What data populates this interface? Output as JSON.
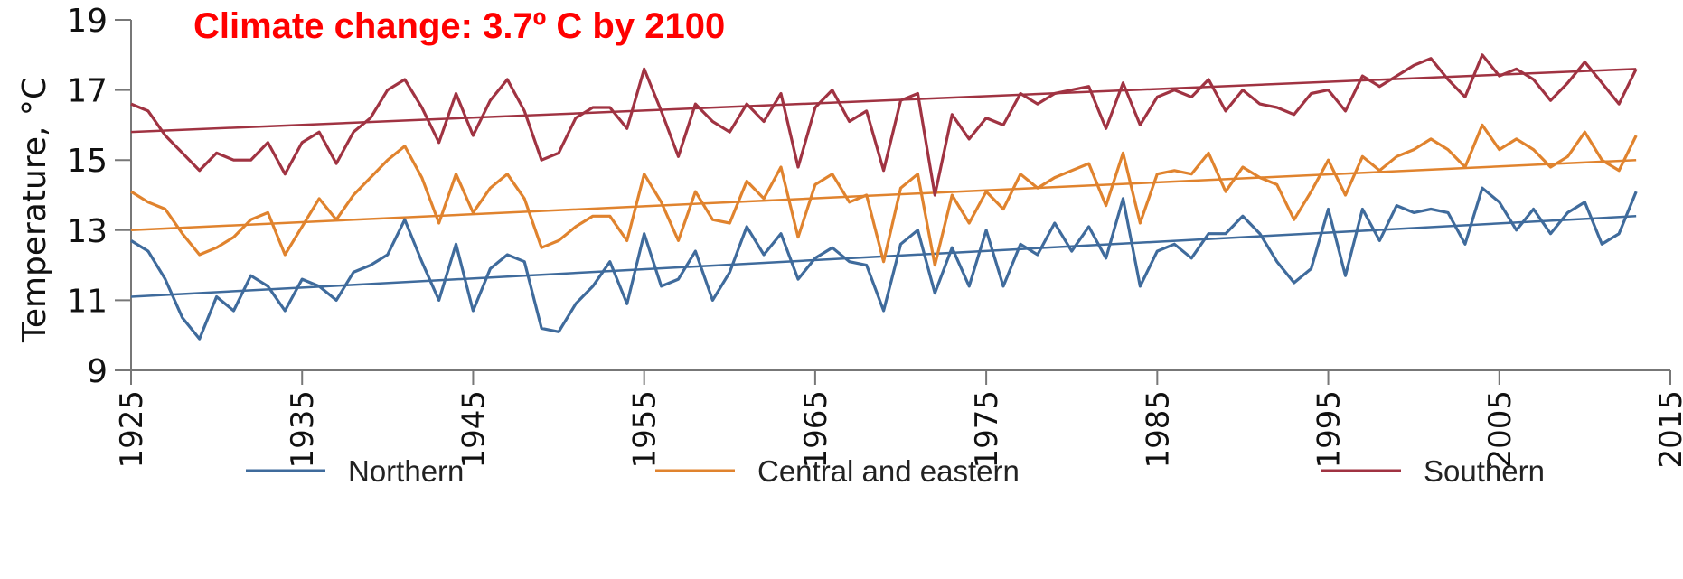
{
  "chart_data": {
    "type": "line",
    "title": "Climate change: 3.7º C by 2100",
    "ylabel": "Temperature, °C",
    "xlabel": "",
    "xlim": [
      1925,
      2015
    ],
    "ylim": [
      9,
      19
    ],
    "x_ticks": [
      "1925",
      "1935",
      "1945",
      "1955",
      "1965",
      "1975",
      "1985",
      "1995",
      "2005",
      "2015"
    ],
    "y_ticks": [
      "9",
      "11",
      "13",
      "15",
      "17",
      "19"
    ],
    "legend_position": "bottom",
    "grid": false,
    "years": [
      1925,
      1926,
      1927,
      1928,
      1929,
      1930,
      1931,
      1932,
      1933,
      1934,
      1935,
      1936,
      1937,
      1938,
      1939,
      1940,
      1941,
      1942,
      1943,
      1944,
      1945,
      1946,
      1947,
      1948,
      1949,
      1950,
      1951,
      1952,
      1953,
      1954,
      1955,
      1956,
      1957,
      1958,
      1959,
      1960,
      1961,
      1962,
      1963,
      1964,
      1965,
      1966,
      1967,
      1968,
      1969,
      1970,
      1971,
      1972,
      1973,
      1974,
      1975,
      1976,
      1977,
      1978,
      1979,
      1980,
      1981,
      1982,
      1983,
      1984,
      1985,
      1986,
      1987,
      1988,
      1989,
      1990,
      1991,
      1992,
      1993,
      1994,
      1995,
      1996,
      1997,
      1998,
      1999,
      2000,
      2001,
      2002,
      2003,
      2004,
      2005,
      2006,
      2007,
      2008,
      2009,
      2010,
      2011,
      2012,
      2013
    ],
    "series": [
      {
        "name": "Northern",
        "color": "#3f6b9c",
        "values": [
          12.7,
          12.4,
          11.6,
          10.5,
          9.9,
          11.1,
          10.7,
          11.7,
          11.4,
          10.7,
          11.6,
          11.4,
          11.0,
          11.8,
          12.0,
          12.3,
          13.3,
          12.1,
          11.0,
          12.6,
          10.7,
          11.9,
          12.3,
          12.1,
          10.2,
          10.1,
          10.9,
          11.4,
          12.1,
          10.9,
          12.9,
          11.4,
          11.6,
          12.4,
          11.0,
          11.8,
          13.1,
          12.3,
          12.9,
          11.6,
          12.2,
          12.5,
          12.1,
          12.0,
          10.7,
          12.6,
          13.0,
          11.2,
          12.5,
          11.4,
          13.0,
          11.4,
          12.6,
          12.3,
          13.2,
          12.4,
          13.1,
          12.2,
          13.9,
          11.4,
          12.4,
          12.6,
          12.2,
          12.9,
          12.9,
          13.4,
          12.9,
          12.1,
          11.5,
          11.9,
          13.6,
          11.7,
          13.6,
          12.7,
          13.7,
          13.5,
          13.6,
          13.5,
          12.6,
          14.2,
          13.8,
          13.0,
          13.6,
          12.9,
          13.5,
          13.8,
          12.6,
          12.9,
          14.1
        ]
      },
      {
        "name": "Central and eastern",
        "color": "#e0832e",
        "values": [
          14.1,
          13.8,
          13.6,
          12.9,
          12.3,
          12.5,
          12.8,
          13.3,
          13.5,
          12.3,
          13.1,
          13.9,
          13.3,
          14.0,
          14.5,
          15.0,
          15.4,
          14.5,
          13.2,
          14.6,
          13.5,
          14.2,
          14.6,
          13.9,
          12.5,
          12.7,
          13.1,
          13.4,
          13.4,
          12.7,
          14.6,
          13.8,
          12.7,
          14.1,
          13.3,
          13.2,
          14.4,
          13.9,
          14.8,
          12.8,
          14.3,
          14.6,
          13.8,
          14.0,
          12.1,
          14.2,
          14.6,
          12.0,
          14.0,
          13.2,
          14.1,
          13.6,
          14.6,
          14.2,
          14.5,
          14.7,
          14.9,
          13.7,
          15.2,
          13.2,
          14.6,
          14.7,
          14.6,
          15.2,
          14.1,
          14.8,
          14.5,
          14.3,
          13.3,
          14.1,
          15.0,
          14.0,
          15.1,
          14.7,
          15.1,
          15.3,
          15.6,
          15.3,
          14.8,
          16.0,
          15.3,
          15.6,
          15.3,
          14.8,
          15.1,
          15.8,
          15.0,
          14.7,
          15.7
        ]
      },
      {
        "name": "Southern",
        "color": "#a03342",
        "values": [
          16.6,
          16.4,
          15.7,
          15.2,
          14.7,
          15.2,
          15.0,
          15.0,
          15.5,
          14.6,
          15.5,
          15.8,
          14.9,
          15.8,
          16.2,
          17.0,
          17.3,
          16.5,
          15.5,
          16.9,
          15.7,
          16.7,
          17.3,
          16.4,
          15.0,
          15.2,
          16.2,
          16.5,
          16.5,
          15.9,
          17.6,
          16.4,
          15.1,
          16.6,
          16.1,
          15.8,
          16.6,
          16.1,
          16.9,
          14.8,
          16.5,
          17.0,
          16.1,
          16.4,
          14.7,
          16.7,
          16.9,
          14.0,
          16.3,
          15.6,
          16.2,
          16.0,
          16.9,
          16.6,
          16.9,
          17.0,
          17.1,
          15.9,
          17.2,
          16.0,
          16.8,
          17.0,
          16.8,
          17.3,
          16.4,
          17.0,
          16.6,
          16.5,
          16.3,
          16.9,
          17.0,
          16.4,
          17.4,
          17.1,
          17.4,
          17.7,
          17.9,
          17.3,
          16.8,
          18.0,
          17.4,
          17.6,
          17.3,
          16.7,
          17.2,
          17.8,
          17.2,
          16.6,
          17.6
        ]
      }
    ],
    "trendlines": [
      {
        "series": "Northern",
        "start": [
          1925,
          11.1
        ],
        "end": [
          2013,
          13.4
        ]
      },
      {
        "series": "Central and eastern",
        "start": [
          1925,
          13.0
        ],
        "end": [
          2013,
          15.0
        ]
      },
      {
        "series": "Southern",
        "start": [
          1925,
          15.8
        ],
        "end": [
          2013,
          17.6
        ]
      }
    ]
  }
}
